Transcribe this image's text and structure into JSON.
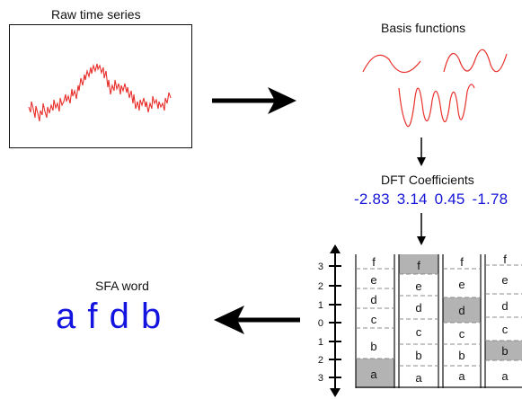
{
  "titles": {
    "raw": "Raw time series",
    "basis": "Basis functions",
    "dft": "DFT Coefficients",
    "sfa": "SFA word"
  },
  "coefficients": [
    "-2.83",
    "3.14",
    "0.45",
    "-1.78"
  ],
  "sfa_word": "a f d b",
  "axis_ticks": [
    "3",
    "2",
    "1",
    "0",
    "1",
    "2",
    "3"
  ],
  "bins": {
    "columns": [
      {
        "letters": [
          "f",
          "e",
          "d",
          "c",
          "b",
          "a"
        ],
        "selected": "a"
      },
      {
        "letters": [
          "f",
          "e",
          "d",
          "c",
          "b",
          "a"
        ],
        "selected": "f"
      },
      {
        "letters": [
          "f",
          "e",
          "d",
          "c",
          "b",
          "a"
        ],
        "selected": "d"
      },
      {
        "letters": [
          "f",
          "e",
          "d",
          "c",
          "b",
          "a"
        ],
        "selected": "b"
      }
    ]
  },
  "colors": {
    "series": "#e8302c",
    "coef_text": "#1414d8",
    "selected_cell": "#b3b3b3",
    "arrow": "#000000"
  }
}
